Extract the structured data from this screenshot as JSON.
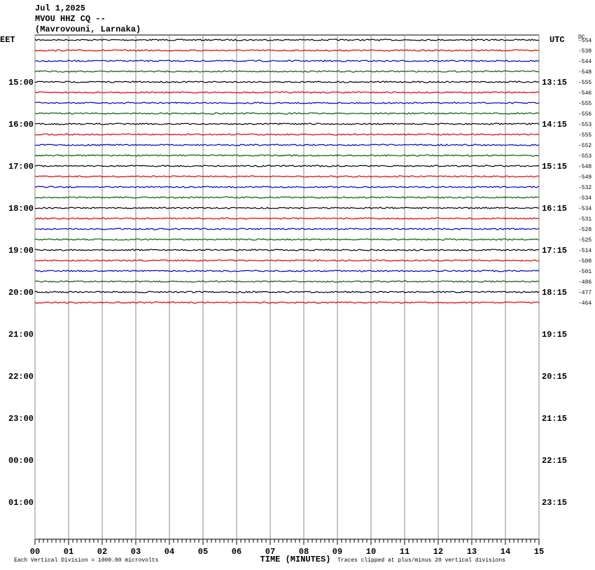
{
  "chart_data": {
    "type": "helicorder",
    "title_lines": [
      "Jul 1,2025",
      "MVOU HHZ CQ --",
      "(Mavrovouni, Larnaka)"
    ],
    "left_zone": "EET",
    "right_zone": "UTC",
    "dc_header": "DC",
    "left_labels": [
      "15:00",
      "16:00",
      "17:00",
      "18:00",
      "19:00",
      "20:00",
      "21:00",
      "22:00",
      "23:00",
      "00:00",
      "01:00"
    ],
    "right_labels": [
      "13:15",
      "14:15",
      "15:15",
      "16:15",
      "17:15",
      "18:15",
      "19:15",
      "20:15",
      "21:15",
      "22:15",
      "23:15"
    ],
    "dc_offsets": [
      -554,
      -538,
      -544,
      -548,
      -555,
      -546,
      -555,
      -556,
      -553,
      -555,
      -552,
      -553,
      -548,
      -549,
      -532,
      -534,
      -534,
      -531,
      -528,
      -525,
      -514,
      -508,
      -501,
      -486,
      -477,
      -464
    ],
    "trace_colors": [
      "#000000",
      "#e00000",
      "#0000c0",
      "#006000"
    ],
    "xlim": [
      0,
      15
    ],
    "xticks": [
      {
        "value": 0,
        "label": "00"
      },
      {
        "value": 1,
        "label": "01"
      },
      {
        "value": 2,
        "label": "02"
      },
      {
        "value": 3,
        "label": "03"
      },
      {
        "value": 4,
        "label": "04"
      },
      {
        "value": 5,
        "label": "05"
      },
      {
        "value": 6,
        "label": "06"
      },
      {
        "value": 7,
        "label": "07"
      },
      {
        "value": 8,
        "label": "08"
      },
      {
        "value": 9,
        "label": "09"
      },
      {
        "value": 10,
        "label": "10"
      },
      {
        "value": 11,
        "label": "11"
      },
      {
        "value": 12,
        "label": "12"
      },
      {
        "value": 13,
        "label": "13"
      },
      {
        "value": 14,
        "label": "14"
      },
      {
        "value": 15,
        "label": "15"
      }
    ],
    "xlabel": "TIME (MINUTES)",
    "scale_note": "Each Vertical Division = 1000.00 microvolts",
    "clip_note": "Traces clipped at plus/minus 20 vertical divisions"
  }
}
